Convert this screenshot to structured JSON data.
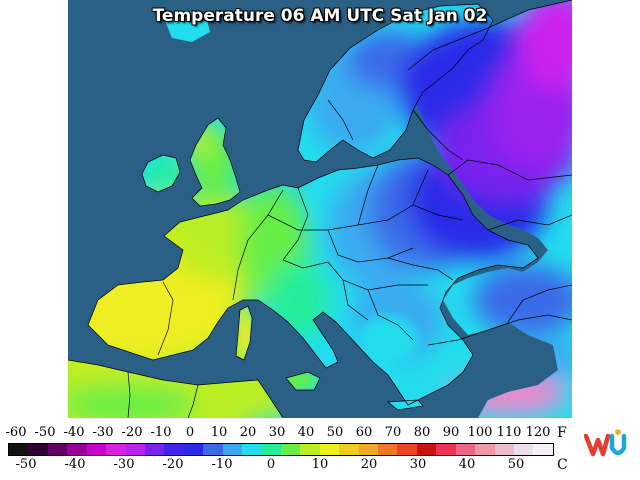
{
  "map": {
    "title": "Temperature 06 AM UTC Sat Jan 02",
    "region": "Europe",
    "colors": {
      "sea": "#2a5f86",
      "very_cold": "#cc22ee",
      "cold_purple": "#7a22ee",
      "cold_blue": "#2a2ae8",
      "cool_blue": "#3a6ae8",
      "light_blue": "#3aaaf0",
      "cyan": "#22ddee",
      "aqua_green": "#22ee99",
      "green": "#66ee44",
      "yellow_green": "#bbee22",
      "yellow": "#eeee22",
      "pink": "#ee88cc"
    }
  },
  "legend": {
    "fahrenheit_unit": "F",
    "celsius_unit": "C",
    "fahrenheit_ticks": [
      "-60",
      "-50",
      "-40",
      "-30",
      "-20",
      "-10",
      "0",
      "10",
      "20",
      "30",
      "40",
      "50",
      "60",
      "70",
      "80",
      "90",
      "100",
      "110",
      "120"
    ],
    "celsius_ticks": [
      "-50",
      "-40",
      "-30",
      "-20",
      "-10",
      "0",
      "10",
      "20",
      "30",
      "40",
      "50"
    ],
    "colorbar": [
      "#111111",
      "#330033",
      "#660066",
      "#990099",
      "#cc00cc",
      "#dd22dd",
      "#bb22ee",
      "#7a22ee",
      "#4422ee",
      "#2a2ae8",
      "#3a6ae8",
      "#3aaaf0",
      "#22ddee",
      "#22ee99",
      "#66ee44",
      "#bbee22",
      "#eeee22",
      "#eecc22",
      "#eeaa22",
      "#ee7722",
      "#ee4422",
      "#cc1111",
      "#ee3355",
      "#ee6688",
      "#ee99aa",
      "#eebbcc",
      "#eeddee",
      "#f8f0f8"
    ]
  },
  "logo": {
    "name": "wu-logo-icon",
    "colors": [
      "#e63c2f",
      "#f7a81b",
      "#1aa7dd"
    ]
  }
}
